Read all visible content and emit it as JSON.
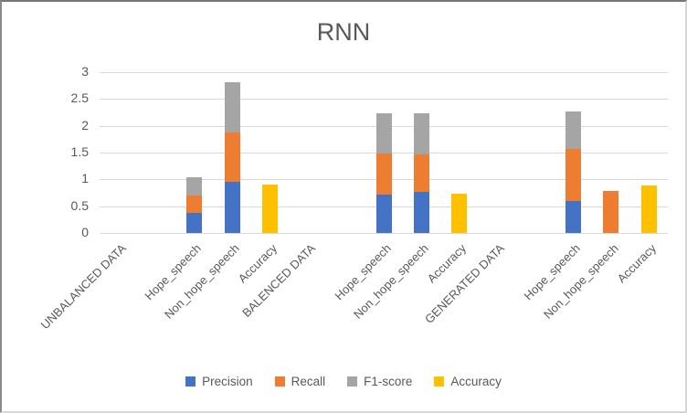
{
  "title": "RNN",
  "chart_data": {
    "type": "bar",
    "stacked": true,
    "title": "RNN",
    "orientation": "vertical",
    "grid": true,
    "legend_position": "bottom",
    "ylim": [
      0,
      3
    ],
    "ytick_labels": [
      "0",
      "0.5",
      "1",
      "1.5",
      "2",
      "2.5",
      "3"
    ],
    "ytick_values": [
      0,
      0.5,
      1,
      1.5,
      2,
      2.5,
      3
    ],
    "categories": [
      "UNBALANCED DATA",
      "",
      "Hope_speech",
      "Non_hope_speech",
      "Accuracy",
      "BALENCED DATA",
      "",
      "Hope_speech",
      "Non_hope_speech",
      "Accuracy",
      "GENERATED DATA",
      "",
      "Hope_speech",
      "Non_hope_speech",
      "Accuracy"
    ],
    "series": [
      {
        "name": "Precision",
        "color": "#4472C4",
        "values": [
          0,
          0,
          0.37,
          0.95,
          0,
          0,
          0,
          0.71,
          0.76,
          0,
          0,
          0,
          0.59,
          0,
          0
        ]
      },
      {
        "name": "Recall",
        "color": "#ED7D31",
        "values": [
          0,
          0,
          0.33,
          0.93,
          0,
          0,
          0,
          0.77,
          0.71,
          0,
          0,
          0,
          0.97,
          0.78,
          0
        ]
      },
      {
        "name": "F1-score",
        "color": "#A5A5A5",
        "values": [
          0,
          0,
          0.34,
          0.94,
          0,
          0,
          0,
          0.76,
          0.76,
          0,
          0,
          0,
          0.71,
          0,
          0
        ]
      },
      {
        "name": "Accuracy",
        "color": "#FFC000",
        "values": [
          0,
          0,
          0,
          0,
          0.9,
          0,
          0,
          0,
          0,
          0.73,
          0,
          0,
          0,
          0,
          0.89
        ]
      }
    ]
  }
}
